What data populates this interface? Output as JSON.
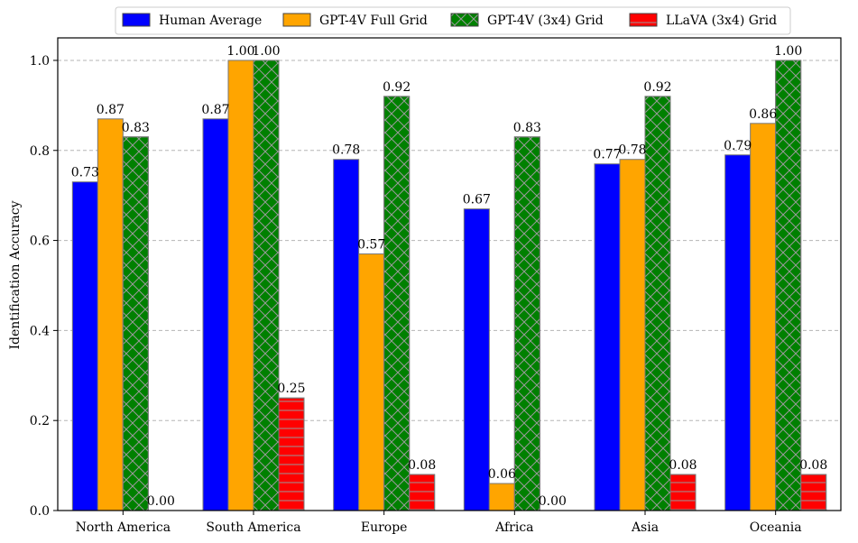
{
  "chart_data": {
    "type": "bar",
    "title": "",
    "xlabel": "",
    "ylabel": "Identification Accuracy",
    "ylim": [
      0,
      1.05
    ],
    "yticks": [
      "0.0",
      "0.2",
      "0.4",
      "0.6",
      "0.8",
      "1.0"
    ],
    "ytick_values": [
      0,
      0.2,
      0.4,
      0.6,
      0.8,
      1.0
    ],
    "grid": "horizontal-dashed",
    "legend_position": "top-center",
    "categories": [
      "North America",
      "South America",
      "Europe",
      "Africa",
      "Asia",
      "Oceania"
    ],
    "series": [
      {
        "name": "Human Average",
        "color": "#0000ff",
        "hatch": "none",
        "values": [
          0.73,
          0.87,
          0.78,
          0.67,
          0.77,
          0.79
        ],
        "labels": [
          "0.73",
          "0.87",
          "0.78",
          "0.67",
          "0.77",
          "0.79"
        ]
      },
      {
        "name": "GPT-4V Full Grid",
        "color": "#ffa500",
        "hatch": "none",
        "values": [
          0.87,
          1.0,
          0.57,
          0.06,
          0.78,
          0.86
        ],
        "labels": [
          "0.87",
          "1.00",
          "0.57",
          "0.06",
          "0.78",
          "0.86"
        ]
      },
      {
        "name": "GPT-4V (3x4) Grid",
        "color": "#008000",
        "hatch": "cross",
        "values": [
          0.83,
          1.0,
          0.92,
          0.83,
          0.92,
          1.0
        ],
        "labels": [
          "0.83",
          "1.00",
          "0.92",
          "0.83",
          "0.92",
          "1.00"
        ]
      },
      {
        "name": "LLaVA (3x4) Grid",
        "color": "#ff0000",
        "hatch": "horizontal",
        "values": [
          0.0,
          0.25,
          0.08,
          0.0,
          0.08,
          0.08
        ],
        "labels": [
          "0.00",
          "0.25",
          "0.08",
          "0.00",
          "0.08",
          "0.08"
        ]
      }
    ]
  }
}
